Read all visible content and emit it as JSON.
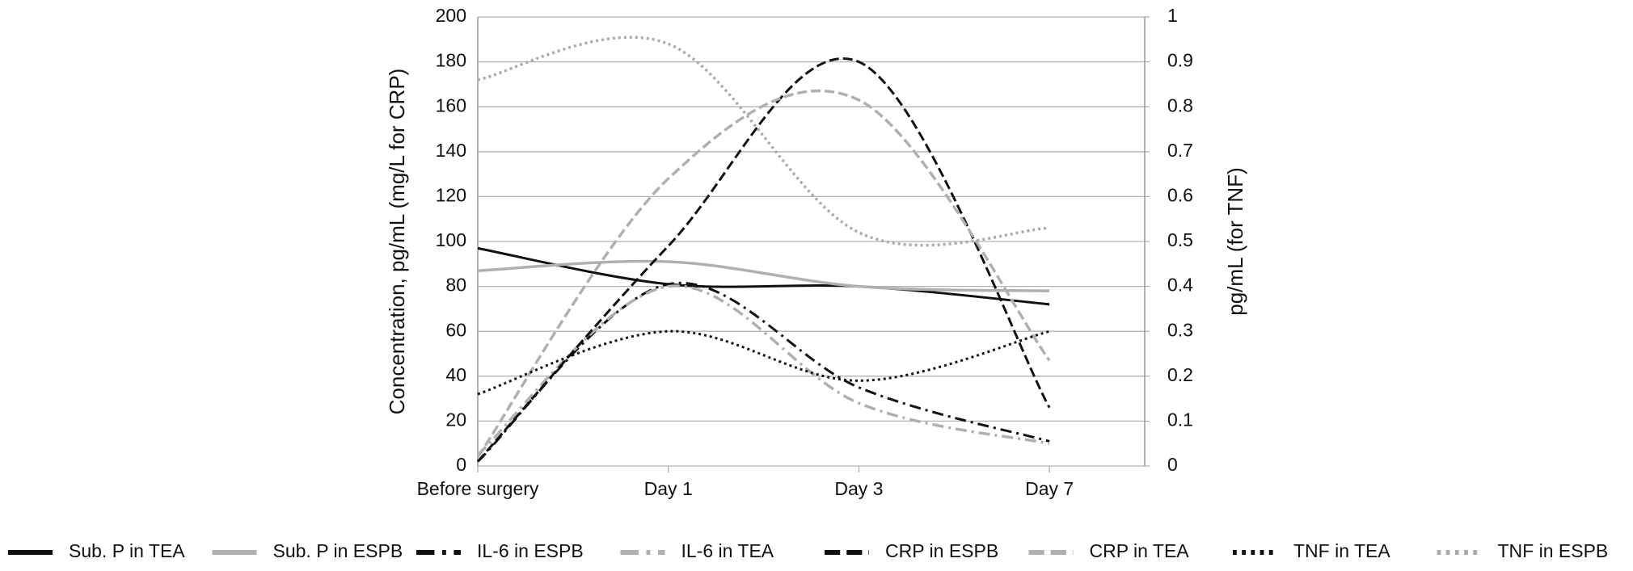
{
  "chart_data": {
    "type": "line",
    "y_label": "Concentration, pg/mL (mg/L for CRP)",
    "y2_label": "pg/mL (for TNF)",
    "categories": [
      "Before surgery",
      "Day 1",
      "Day 3",
      "Day 7"
    ],
    "ylim": [
      0,
      200
    ],
    "yticks": [
      0,
      20,
      40,
      60,
      80,
      100,
      120,
      140,
      160,
      180,
      200
    ],
    "y2lim": [
      0,
      1
    ],
    "y2ticks": [
      0,
      0.1,
      0.2,
      0.3,
      0.4,
      0.5,
      0.6,
      0.7,
      0.8,
      0.9,
      1
    ],
    "grid": true,
    "smooth": true,
    "legend": "bottom",
    "series": [
      {
        "name": "Sub. P in TEA",
        "color": "#111111",
        "dash": "solid",
        "values": [
          97,
          81,
          80,
          72
        ]
      },
      {
        "name": "Sub. P in ESPB",
        "color": "#b0b0b0",
        "dash": "solid",
        "values": [
          87,
          91,
          80,
          78
        ]
      },
      {
        "name": "IL-6 in ESPB",
        "color": "#111111",
        "dash": "dashdot",
        "values": [
          2,
          81,
          35,
          11
        ]
      },
      {
        "name": "IL-6 in TEA",
        "color": "#b0b0b0",
        "dash": "dashdot",
        "values": [
          5,
          80,
          28,
          10
        ]
      },
      {
        "name": "CRP in ESPB",
        "color": "#111111",
        "dash": "dashed",
        "values": [
          2,
          98,
          180,
          26
        ]
      },
      {
        "name": "CRP in TEA",
        "color": "#b0b0b0",
        "dash": "dashed",
        "values": [
          4,
          128,
          163,
          47
        ]
      },
      {
        "name": "TNF in TEA",
        "color": "#111111",
        "dash": "dotted",
        "axis": "y2",
        "values": [
          0.16,
          0.3,
          0.19,
          0.3
        ]
      },
      {
        "name": "TNF in ESPB",
        "color": "#aaaaaa",
        "dash": "dotted",
        "axis": "y2",
        "values": [
          0.86,
          0.94,
          0.52,
          0.53
        ]
      }
    ]
  }
}
